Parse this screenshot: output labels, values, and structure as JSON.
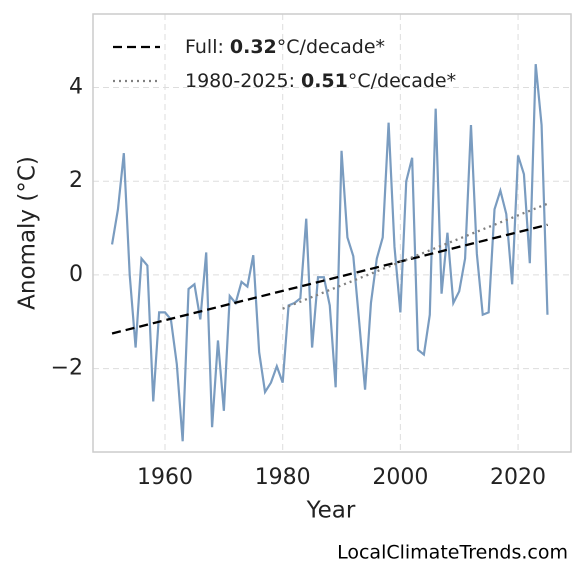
{
  "chart_data": {
    "type": "line",
    "xlabel": "Year",
    "ylabel": "Anomaly (°C)",
    "watermark": "LocalClimateTrends.com",
    "x": [
      1951,
      1952,
      1953,
      1954,
      1955,
      1956,
      1957,
      1958,
      1959,
      1960,
      1961,
      1962,
      1963,
      1964,
      1965,
      1966,
      1967,
      1968,
      1969,
      1970,
      1971,
      1972,
      1973,
      1974,
      1975,
      1976,
      1977,
      1978,
      1979,
      1980,
      1981,
      1982,
      1983,
      1984,
      1985,
      1986,
      1987,
      1988,
      1989,
      1990,
      1991,
      1992,
      1993,
      1994,
      1995,
      1996,
      1997,
      1998,
      1999,
      2000,
      2001,
      2002,
      2003,
      2004,
      2005,
      2006,
      2007,
      2008,
      2009,
      2010,
      2011,
      2012,
      2013,
      2014,
      2015,
      2016,
      2017,
      2018,
      2019,
      2020,
      2021,
      2022,
      2023,
      2024,
      2025
    ],
    "series": [
      {
        "color": "#7a9cc0",
        "values": [
          0.65,
          1.4,
          2.6,
          0.0,
          -1.55,
          0.35,
          0.2,
          -2.7,
          -0.8,
          -0.8,
          -0.95,
          -1.9,
          -3.55,
          -0.3,
          -0.2,
          -0.95,
          0.48,
          -3.25,
          -1.4,
          -2.9,
          -0.45,
          -0.6,
          -0.15,
          -0.25,
          0.42,
          -1.65,
          -2.5,
          -2.3,
          -1.95,
          -2.3,
          -0.65,
          -0.6,
          -0.5,
          1.2,
          -1.55,
          -0.05,
          -0.05,
          -0.65,
          -2.4,
          2.65,
          0.8,
          0.4,
          -1.0,
          -2.45,
          -0.6,
          0.35,
          0.8,
          3.25,
          0.6,
          -0.8,
          2.0,
          2.5,
          -1.6,
          -1.7,
          -0.85,
          3.55,
          -0.4,
          0.9,
          -0.6,
          -0.35,
          0.35,
          3.2,
          0.45,
          -0.85,
          -0.8,
          1.4,
          1.8,
          1.3,
          -0.2,
          2.55,
          2.15,
          0.25,
          4.5,
          3.2,
          -0.85
        ]
      },
      {
        "name": "Full:",
        "trend": 0.32,
        "trend_unit": "°C/decade*",
        "color": "#000000",
        "style": "dashed",
        "x": [
          1951,
          2025
        ],
        "values": [
          -1.25,
          1.07
        ]
      },
      {
        "name": "1980-2025:",
        "trend": 0.51,
        "trend_unit": "°C/decade*",
        "color": "#808080",
        "style": "dotted",
        "x": [
          1980,
          2025
        ],
        "values": [
          -0.72,
          1.52
        ]
      }
    ],
    "xlim": [
      1947.76,
      2029.0
    ],
    "ylim": [
      -3.78,
      5.57
    ],
    "xticks": [
      1960,
      1980,
      2000,
      2020
    ],
    "yticks": [
      {
        "value": -2,
        "label": "−2"
      },
      0,
      2,
      4
    ],
    "grid": true,
    "legend": "upper left"
  }
}
